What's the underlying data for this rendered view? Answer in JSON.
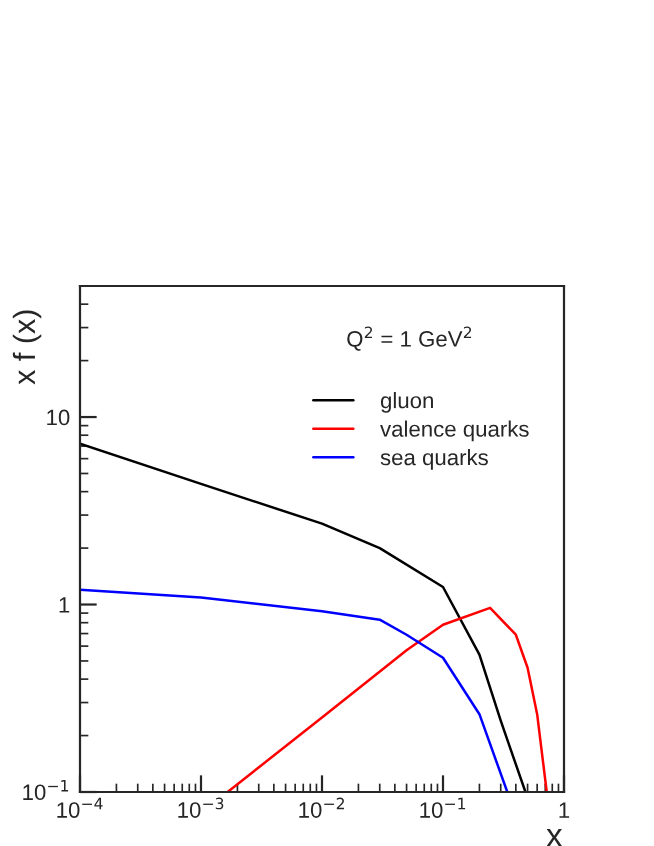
{
  "chart_data": {
    "type": "line",
    "xlabel": "x",
    "ylabel": "x f (x)",
    "log": "xy",
    "annotations": [
      "Q$^{2}$ = 1 GeV$^{2}$"
    ],
    "xlim": [
      0.0001,
      1
    ],
    "ylim": [
      0.1,
      50
    ],
    "xticks": [
      {
        "value": 0.0001,
        "label": "10$^{−4}$"
      },
      {
        "value": 0.001,
        "label": "10$^{−3}$"
      },
      {
        "value": 0.01,
        "label": "10$^{−2}$"
      },
      {
        "value": 0.1,
        "label": "10$^{−1}$"
      },
      {
        "value": 1,
        "label": "1"
      }
    ],
    "yticks": [
      {
        "value": 0.1,
        "label": "10$^{−1}$"
      },
      {
        "value": 1,
        "label": "1"
      },
      {
        "value": 10,
        "label": "10"
      }
    ],
    "grid": false,
    "legend": "top right",
    "marker": "none",
    "line_style": "solid",
    "series": [
      {
        "name": "gluon",
        "color": "#000000",
        "x": [
          0.0001,
          0.001,
          0.01,
          0.03,
          0.1,
          0.2,
          0.3,
          0.48
        ],
        "values": [
          7.2,
          4.4,
          2.7,
          2.0,
          1.24,
          0.54,
          0.24,
          0.1
        ]
      },
      {
        "name": "valence quarks",
        "color": "#ff0000",
        "x": [
          0.00166,
          0.01,
          0.05,
          0.1,
          0.245,
          0.4,
          0.5,
          0.6,
          0.72
        ],
        "values": [
          0.1,
          0.25,
          0.57,
          0.78,
          0.96,
          0.69,
          0.46,
          0.26,
          0.1
        ]
      },
      {
        "name": "sea quarks",
        "color": "#0000ff",
        "x": [
          0.0001,
          0.001,
          0.01,
          0.03,
          0.05,
          0.1,
          0.2,
          0.34
        ],
        "values": [
          1.2,
          1.09,
          0.92,
          0.83,
          0.69,
          0.52,
          0.26,
          0.1
        ]
      }
    ]
  }
}
